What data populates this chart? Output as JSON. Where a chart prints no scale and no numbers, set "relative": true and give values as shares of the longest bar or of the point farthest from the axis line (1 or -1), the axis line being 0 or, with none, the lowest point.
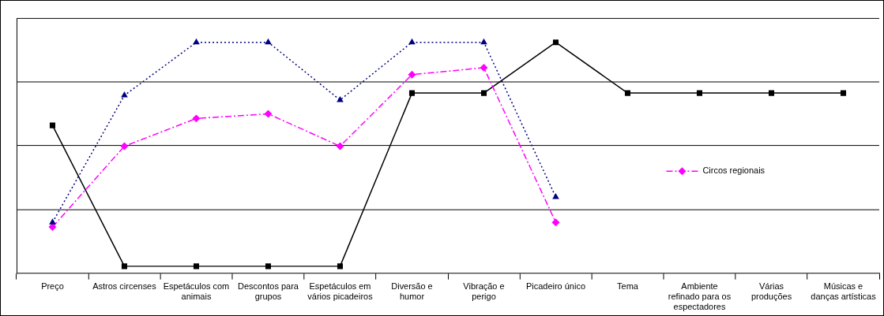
{
  "chart_data": {
    "type": "line",
    "relative": true,
    "grid": true,
    "legend": "right",
    "categories": [
      "Preço",
      "Astros circenses",
      "Espetáculos com animais",
      "Descontos para grupos",
      "Espetáculos em vários picadeiros",
      "Diversão e humor",
      "Vibração e perigo",
      "Picadeiro único",
      "Tema",
      "Ambiente refinado para os espectadores",
      "Várias produções",
      "Músicas e danças artísticas"
    ],
    "series": [
      {
        "color": "#000080",
        "marker": "triangle",
        "line_style": "dotted",
        "values": [
          0.22,
          0.77,
          1,
          1,
          0.75,
          1,
          1,
          0.33,
          null,
          null,
          null,
          null
        ]
      },
      {
        "name": "Circos regionais",
        "color": "#ff00ff",
        "marker": "diamond",
        "line_style": "dashed",
        "values": [
          0.2,
          0.55,
          0.67,
          0.69,
          0.55,
          0.86,
          0.89,
          0.22,
          null,
          null,
          null,
          null
        ]
      },
      {
        "color": "#000000",
        "marker": "square",
        "line_style": "solid",
        "values": [
          0.64,
          0.03,
          0.03,
          0.03,
          0.03,
          0.78,
          0.78,
          1,
          0.78,
          0.78,
          0.78,
          0.78
        ]
      }
    ]
  }
}
